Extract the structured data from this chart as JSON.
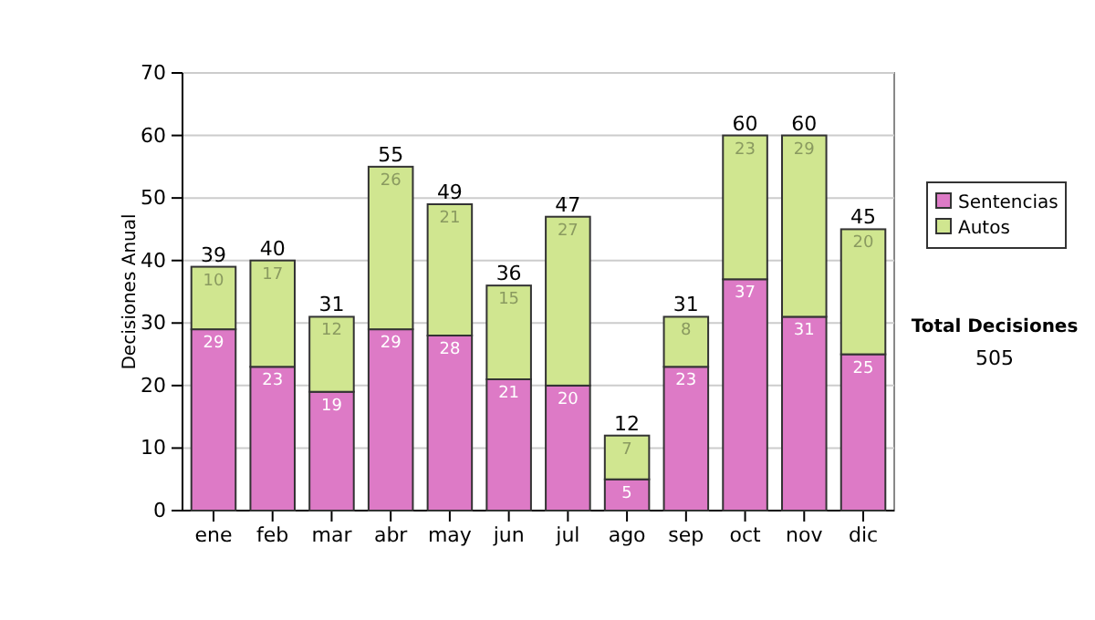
{
  "chart_data": {
    "type": "bar",
    "stacked": true,
    "ylabel": "Decisiones Anual",
    "categories": [
      "ene",
      "feb",
      "mar",
      "abr",
      "may",
      "jun",
      "jul",
      "ago",
      "sep",
      "oct",
      "nov",
      "dic"
    ],
    "series": [
      {
        "name": "Sentencias",
        "color": "#dd7ac6",
        "values": [
          29,
          23,
          19,
          29,
          28,
          21,
          20,
          5,
          23,
          37,
          31,
          25
        ]
      },
      {
        "name": "Autos",
        "color": "#d0e690",
        "values": [
          10,
          17,
          12,
          26,
          21,
          15,
          27,
          7,
          8,
          23,
          29,
          20
        ]
      }
    ],
    "ylim": [
      0,
      70
    ],
    "yticks": [
      0,
      10,
      20,
      30,
      40,
      50,
      60,
      70
    ],
    "grid": "y",
    "legend": "right",
    "data_labels": true,
    "totals": [
      "39",
      "40",
      "31",
      "55",
      "49",
      "36",
      "47",
      "12",
      "31",
      "60",
      "60",
      "45"
    ],
    "annotations": [
      "Total Decisiones",
      "505"
    ]
  }
}
